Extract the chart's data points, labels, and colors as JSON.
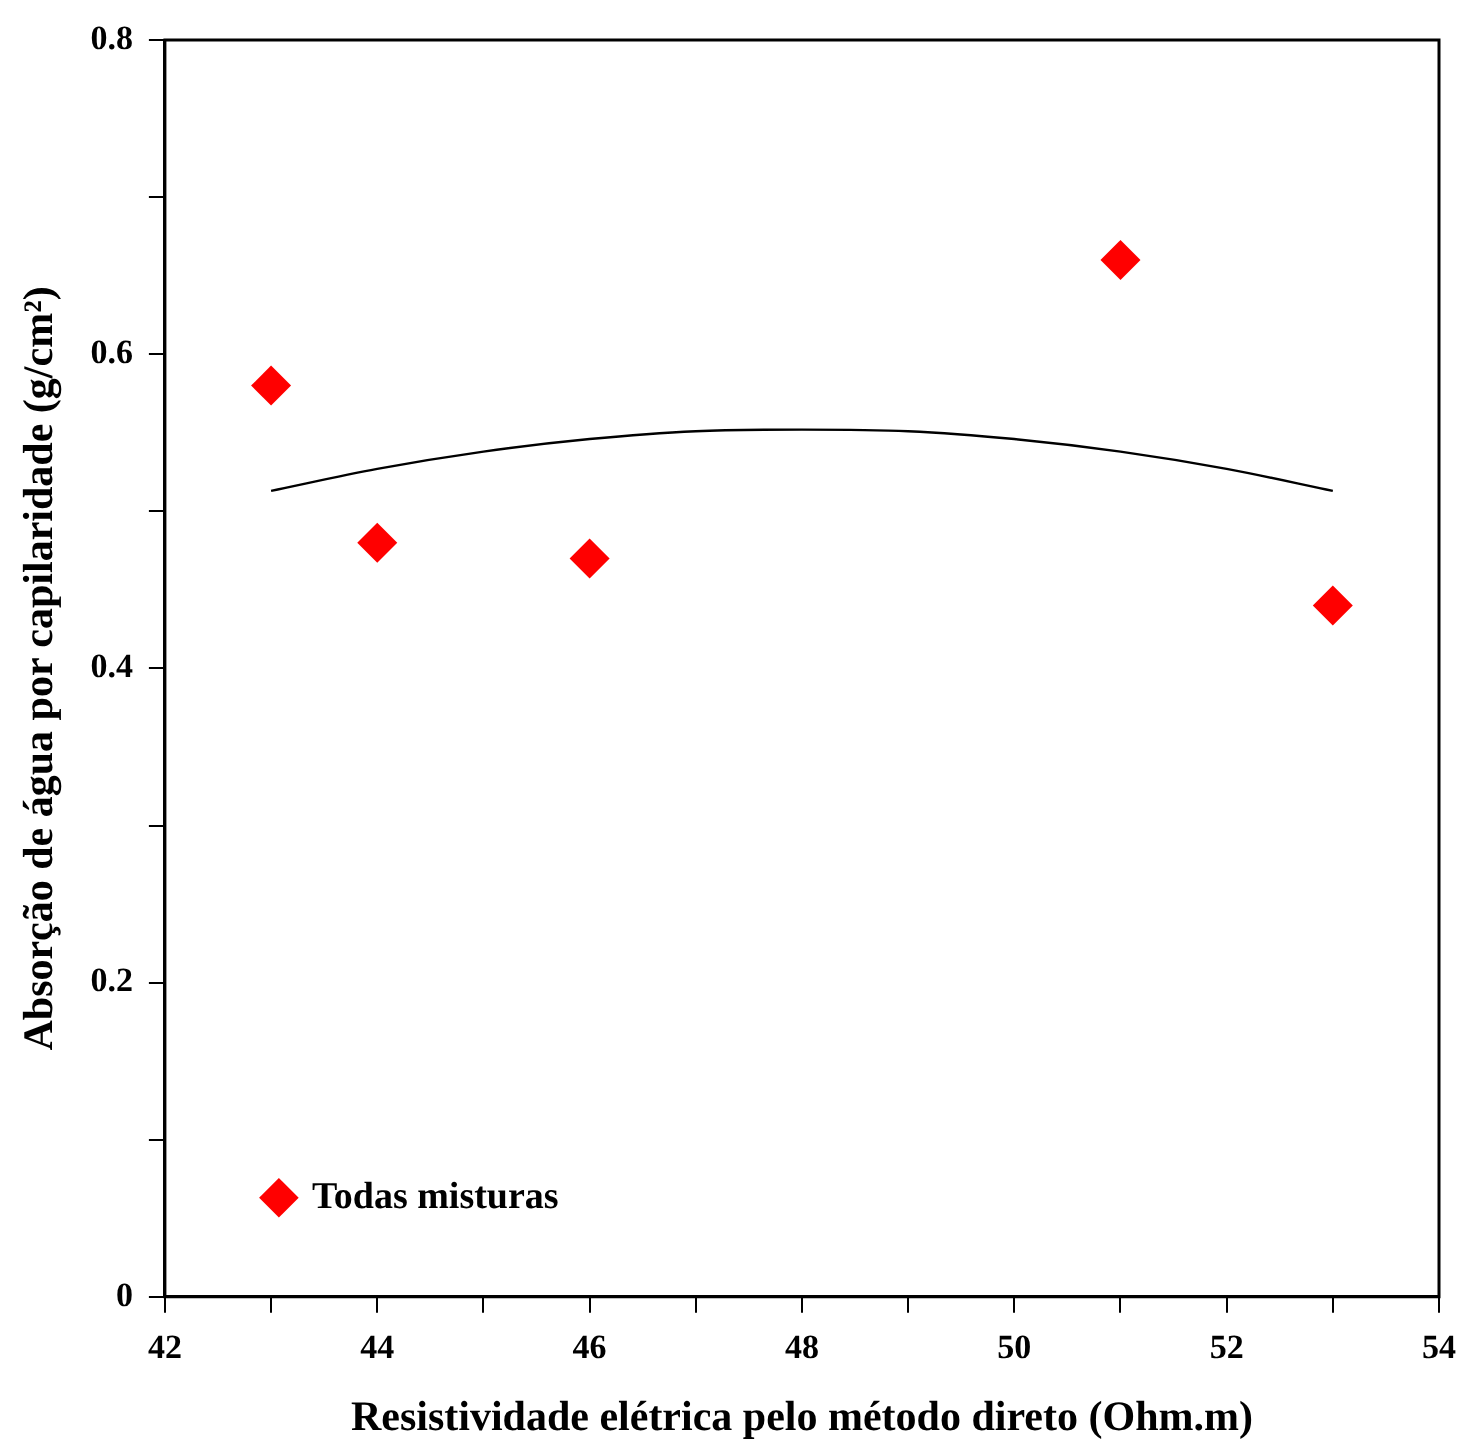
{
  "chart_data": {
    "type": "scatter",
    "xlabel": "Resistividade elétrica pelo método direto (Ohm.m)",
    "ylabel": "Absorção de água por capilaridade (g/cm²)",
    "x": [
      43,
      44,
      46,
      51,
      53
    ],
    "series": [
      {
        "name": "Todas misturas",
        "color": "#ff0000",
        "marker": "diamond",
        "values": [
          0.58,
          0.48,
          0.47,
          0.66,
          0.44
        ]
      },
      {
        "type": "line",
        "color": "#000000",
        "marker": "none",
        "line_style": "solid",
        "x": [
          43,
          44,
          45,
          46,
          47,
          48,
          49,
          50,
          51,
          52,
          53
        ],
        "values": [
          0.513,
          0.527,
          0.538,
          0.546,
          0.551,
          0.552,
          0.551,
          0.546,
          0.538,
          0.527,
          0.513
        ]
      }
    ],
    "xlim": [
      42,
      54
    ],
    "xticks": [
      42,
      {
        "value": 43,
        "label": null
      },
      44,
      {
        "value": 45,
        "label": null
      },
      46,
      {
        "value": 47,
        "label": null
      },
      48,
      {
        "value": 49,
        "label": null
      },
      50,
      {
        "value": 51,
        "label": null
      },
      52,
      {
        "value": 53,
        "label": null
      },
      54
    ],
    "ylim": [
      0,
      0.8
    ],
    "yticks": [
      0,
      {
        "value": 0.1,
        "label": null
      },
      0.2,
      {
        "value": 0.3,
        "label": null
      },
      0.4,
      {
        "value": 0.5,
        "label": null
      },
      0.6,
      {
        "value": 0.7,
        "label": null
      },
      0.8
    ],
    "legend": "bottom left"
  }
}
